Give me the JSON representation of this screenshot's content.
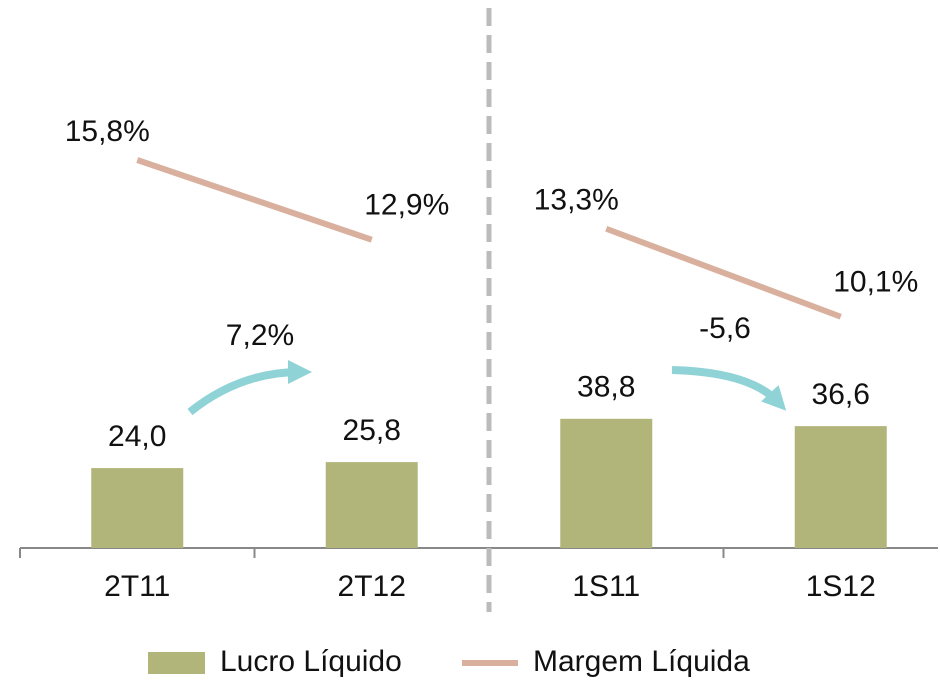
{
  "chart_data": {
    "type": "bar_line",
    "categories": [
      "2T11",
      "2T12",
      "1S11",
      "1S12"
    ],
    "divider_after": 1,
    "series": [
      {
        "name": "Lucro Líquido",
        "type": "bar",
        "color": "#b2b57a",
        "values": [
          24.0,
          25.8,
          38.8,
          36.6
        ],
        "value_labels": [
          "24,0",
          "25,8",
          "38,8",
          "36,6"
        ]
      },
      {
        "name": "Margem Líquida",
        "type": "line",
        "axis": "y2",
        "color": "#d9b09e",
        "values": [
          15.8,
          12.9,
          13.3,
          10.1
        ],
        "value_labels": [
          "15,8%",
          "12,9%",
          "13,3%",
          "10,1%"
        ]
      }
    ],
    "annotations": [
      "7,2%",
      "-5,6"
    ]
  }
}
